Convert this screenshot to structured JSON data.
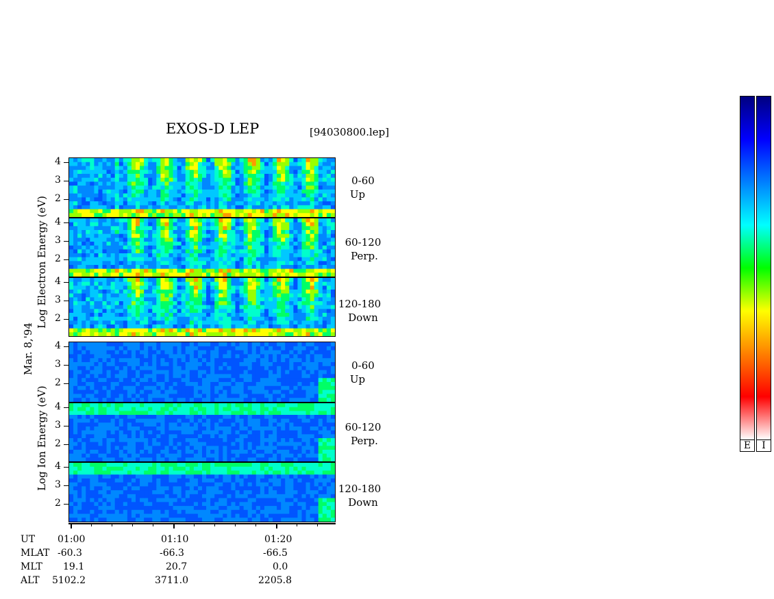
{
  "header": {
    "title": "EXOS-D LEP",
    "file": "[94030800.lep]"
  },
  "y_axis": {
    "date_label": "Mar. 8,'94",
    "electron_label": "Log Electron Energy (eV)",
    "ion_label": "Log Ion Energy (eV)"
  },
  "panels": [
    {
      "species": "Electron",
      "angle": "0-60",
      "dir": "Up"
    },
    {
      "species": "Electron",
      "angle": "60-120",
      "dir": "Perp."
    },
    {
      "species": "Electron",
      "angle": "120-180",
      "dir": "Down"
    },
    {
      "species": "Ion",
      "angle": "0-60",
      "dir": "Up"
    },
    {
      "species": "Ion",
      "angle": "60-120",
      "dir": "Perp."
    },
    {
      "species": "Ion",
      "angle": "120-180",
      "dir": "Down"
    }
  ],
  "y_ticks": [
    "4",
    "3",
    "2"
  ],
  "x_axis": {
    "row_labels": [
      "UT",
      "MLAT",
      "MLT",
      "ALT"
    ],
    "columns": [
      {
        "UT": "01:00",
        "MLAT": "-60.3",
        "MLT": "19.1",
        "ALT": "5102.2"
      },
      {
        "UT": "01:10",
        "MLAT": "-66.3",
        "MLT": "20.7",
        "ALT": "3711.0"
      },
      {
        "UT": "01:20",
        "MLAT": "-66.5",
        "MLT": "0.0",
        "ALT": "2205.8"
      }
    ]
  },
  "color_scale": {
    "labels": [
      "E",
      "I"
    ],
    "colors": [
      "#ffffff",
      "#ff0000",
      "#ff8000",
      "#ffff00",
      "#00ff00",
      "#00ffff",
      "#0080ff",
      "#0000ff",
      "#000080"
    ]
  },
  "chart_data": {
    "type": "heatmap",
    "title": "EXOS-D LEP",
    "xlabel": "UT",
    "ylabel": "Log Energy (eV)",
    "ylim": [
      1,
      4
    ],
    "x_ticks": [
      "01:00",
      "01:10",
      "01:20"
    ],
    "series": [
      {
        "name": "Electron 0-60 Up"
      },
      {
        "name": "Electron 60-120 Perp."
      },
      {
        "name": "Electron 120-180 Down"
      },
      {
        "name": "Ion 0-60 Up"
      },
      {
        "name": "Ion 60-120 Perp."
      },
      {
        "name": "Ion 120-180 Down"
      }
    ]
  }
}
